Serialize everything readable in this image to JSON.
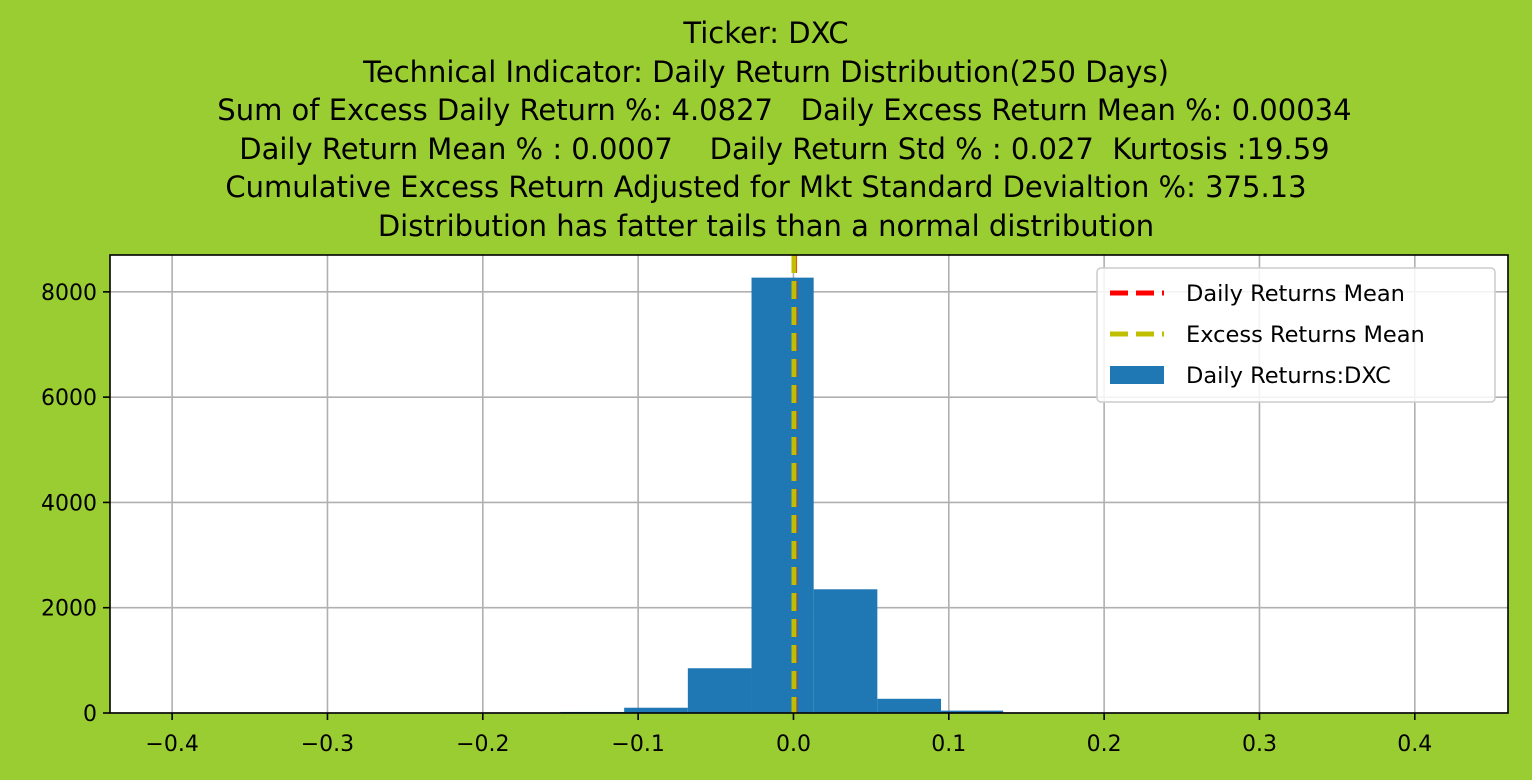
{
  "chart_data": {
    "type": "bar",
    "title_lines": [
      "Ticker: DXC",
      "Technical Indicator: Daily Return Distribution(250 Days)",
      "    Sum of Excess Daily Return %: 4.0827   Daily Excess Return Mean %: 0.00034",
      "    Daily Return Mean % : 0.0007    Daily Return Std % : 0.027  Kurtosis :19.59",
      "Cumulative Excess Return Adjusted for Mkt Standard Devialtion %: 375.13",
      "Distribution has fatter tails than a normal distribution"
    ],
    "xlim": [
      -0.44,
      0.46
    ],
    "ylim": [
      0,
      8700
    ],
    "xticks": [
      -0.4,
      -0.3,
      -0.2,
      -0.1,
      0.0,
      0.1,
      0.2,
      0.3,
      0.4
    ],
    "xtick_labels": [
      "−0.4",
      "−0.3",
      "−0.2",
      "−0.1",
      "0.0",
      "0.1",
      "0.2",
      "0.3",
      "0.4"
    ],
    "yticks": [
      0,
      2000,
      4000,
      6000,
      8000
    ],
    "ytick_labels": [
      "0",
      "2000",
      "4000",
      "6000",
      "8000"
    ],
    "grid": true,
    "legend_position": "top-right",
    "bins": [
      {
        "x0": -0.15,
        "x1": -0.109,
        "count": 20
      },
      {
        "x0": -0.109,
        "x1": -0.068,
        "count": 100
      },
      {
        "x0": -0.068,
        "x1": -0.027,
        "count": 850
      },
      {
        "x0": -0.027,
        "x1": 0.013,
        "count": 8270
      },
      {
        "x0": 0.013,
        "x1": 0.054,
        "count": 2350
      },
      {
        "x0": 0.054,
        "x1": 0.095,
        "count": 270
      },
      {
        "x0": 0.095,
        "x1": 0.135,
        "count": 45
      }
    ],
    "daily_returns_mean": 0.0007,
    "excess_returns_mean": 0.00034,
    "series": [
      {
        "name": "Daily Returns Mean",
        "kind": "vline",
        "color": "#ff0000",
        "style": "dashed"
      },
      {
        "name": "Excess Returns Mean",
        "kind": "vline",
        "color": "#bfbf00",
        "style": "dashed"
      },
      {
        "name": "Daily Returns:DXC",
        "kind": "histogram",
        "color": "#1f77b4"
      }
    ],
    "colors": {
      "background": "#9acd32",
      "plot_area": "#ffffff",
      "grid": "#b0b0b0",
      "bars": "#1f77b4",
      "daily_mean_line": "#ff0000",
      "excess_mean_line": "#bfbf00"
    }
  }
}
